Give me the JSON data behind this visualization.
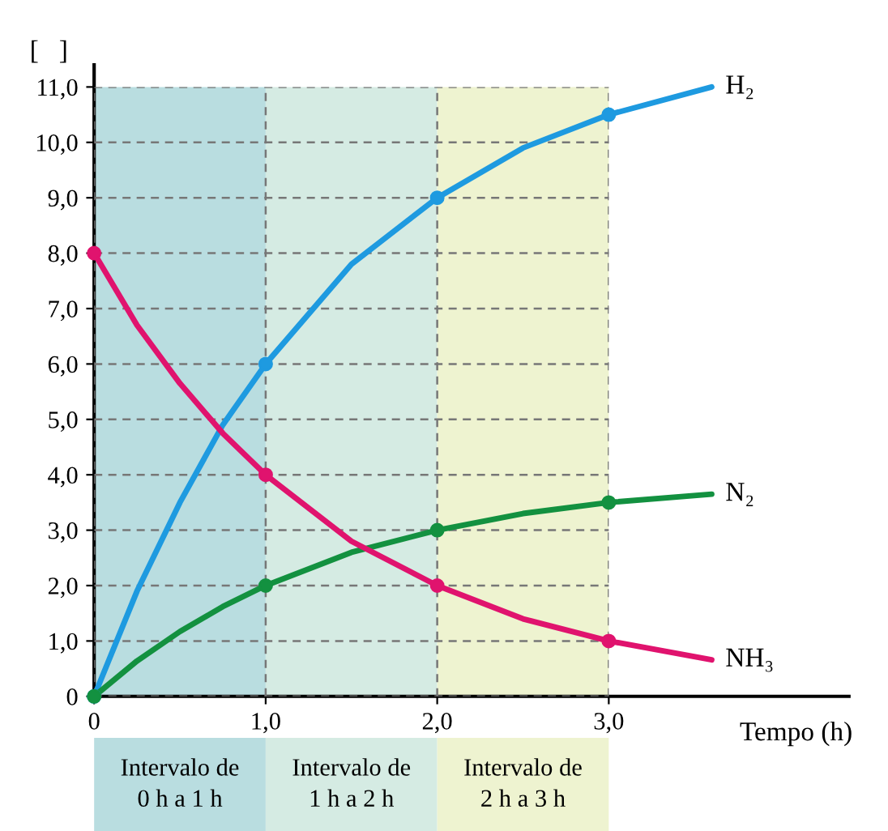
{
  "chart_data": {
    "type": "line",
    "ylabel": "[   ]",
    "xlabel": "Tempo (h)",
    "xlim": [
      0,
      4.4
    ],
    "ylim": [
      0,
      11.4
    ],
    "xticks": [
      {
        "value": 0,
        "label": "0"
      },
      {
        "value": 1,
        "label": "1,0"
      },
      {
        "value": 2,
        "label": "2,0"
      },
      {
        "value": 3,
        "label": "3,0"
      }
    ],
    "yticks": [
      {
        "value": 0,
        "label": "0"
      },
      {
        "value": 1,
        "label": "1,0"
      },
      {
        "value": 2,
        "label": "2,0"
      },
      {
        "value": 3,
        "label": "3,0"
      },
      {
        "value": 4,
        "label": "4,0"
      },
      {
        "value": 5,
        "label": "5,0"
      },
      {
        "value": 6,
        "label": "6,0"
      },
      {
        "value": 7,
        "label": "7,0"
      },
      {
        "value": 8,
        "label": "8,0"
      },
      {
        "value": 9,
        "label": "9,0"
      },
      {
        "value": 10,
        "label": "10,0"
      },
      {
        "value": 11,
        "label": "11,0"
      }
    ],
    "grid": true,
    "legend": false,
    "line_style": "solid",
    "series": [
      {
        "name": "H₂",
        "color": "#1e9ae0",
        "x": [
          0,
          0.25,
          0.5,
          0.75,
          1,
          1.5,
          2,
          2.5,
          3,
          3.6
        ],
        "values": [
          0,
          1.9,
          3.5,
          4.9,
          6,
          7.8,
          9,
          9.9,
          10.5,
          11.0
        ]
      },
      {
        "name": "N₂",
        "color": "#139140",
        "x": [
          0,
          0.25,
          0.5,
          0.75,
          1,
          1.5,
          2,
          2.5,
          3,
          3.6
        ],
        "values": [
          0,
          0.64,
          1.17,
          1.62,
          2,
          2.6,
          3,
          3.3,
          3.5,
          3.65
        ]
      },
      {
        "name": "NH₃",
        "color": "#e0136e",
        "x": [
          0,
          0.25,
          0.5,
          0.75,
          1,
          1.5,
          2,
          2.5,
          3,
          3.6
        ],
        "values": [
          8,
          6.7,
          5.65,
          4.75,
          4,
          2.8,
          2,
          1.4,
          1,
          0.66
        ]
      },
      {
        "type": "scatter",
        "color": "#1e9ae0",
        "x": [
          0,
          1,
          2,
          3
        ],
        "values": [
          0,
          6,
          9,
          10.5
        ]
      },
      {
        "type": "scatter",
        "color": "#139140",
        "x": [
          0,
          1,
          2,
          3
        ],
        "values": [
          0,
          2,
          3,
          3.5
        ]
      },
      {
        "type": "scatter",
        "color": "#e0136e",
        "x": [
          0,
          1,
          2,
          3
        ],
        "values": [
          8,
          4,
          2,
          1
        ]
      }
    ],
    "bands": [
      {
        "axis": "x",
        "from": 0,
        "to": 1,
        "label": "Intervalo de\n0 h a 1 h",
        "color": "#b9dde0"
      },
      {
        "axis": "x",
        "from": 1,
        "to": 2,
        "label": "Intervalo de\n1 h a 2 h",
        "color": "#d5ebe3"
      },
      {
        "axis": "x",
        "from": 2,
        "to": 3,
        "label": "Intervalo de\n2 h a 3 h",
        "color": "#eef3d0"
      }
    ]
  }
}
